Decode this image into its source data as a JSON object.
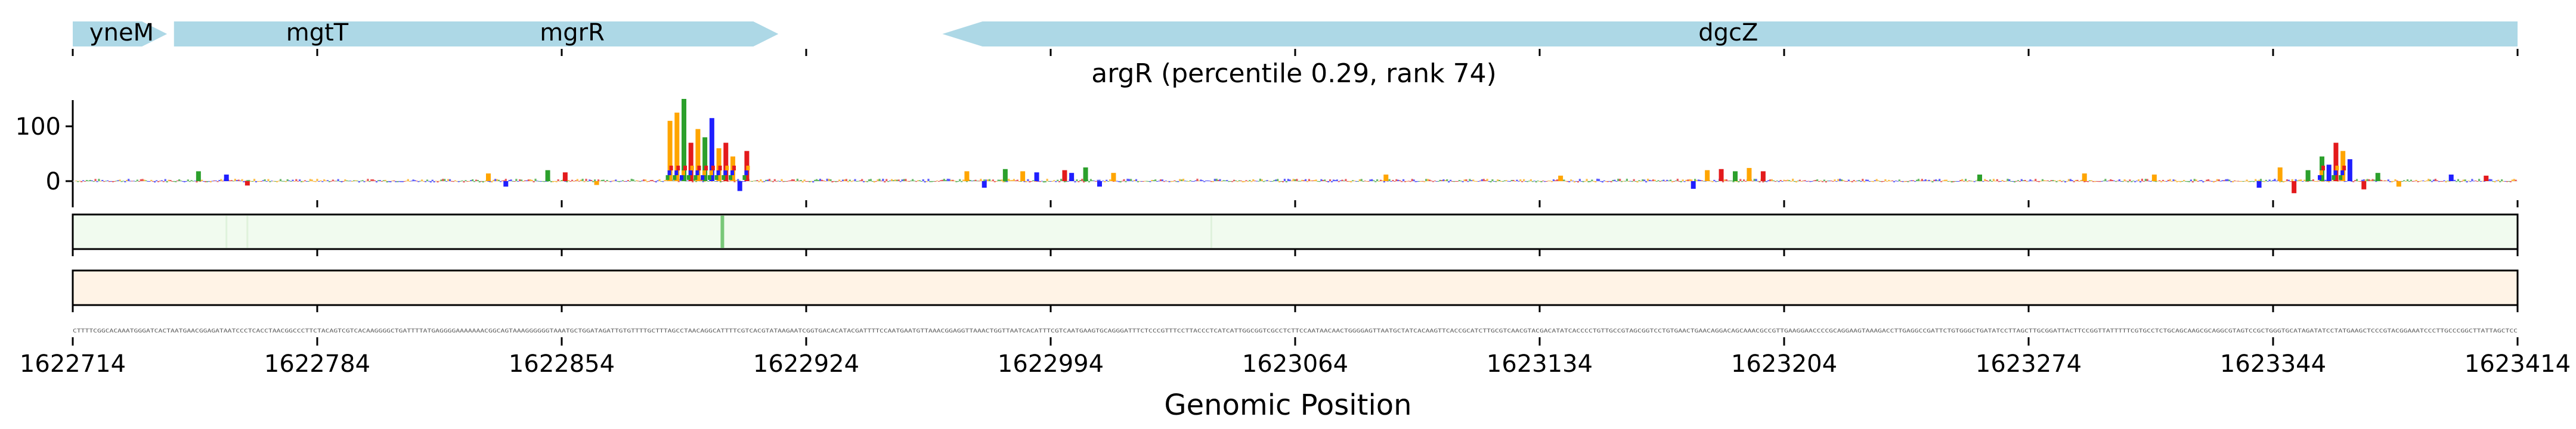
{
  "colors": {
    "gene_arrow": "#add8e6",
    "base_A": "#2ca02c",
    "base_C": "#1f1fff",
    "base_G": "#ffa500",
    "base_T": "#e31a1c",
    "track1_fill": "#f1fbef",
    "track1_highlight": "#78c878",
    "track2_fill": "#fff3e6",
    "axis": "#000000"
  },
  "chart_data": {
    "type": "sequence-logo-track",
    "title": "argR (percentile 0.29, rank 74)",
    "xlabel": "Genomic Position",
    "ylabel": "",
    "x_range": [
      1622714,
      1623414
    ],
    "x_ticks": [
      "1622714",
      "1622784",
      "1622854",
      "1622924",
      "1622994",
      "1623064",
      "1623134",
      "1623204",
      "1623274",
      "1623344",
      "1623414"
    ],
    "y_ticks": [
      "0",
      "100"
    ],
    "ylim": [
      -30,
      160
    ],
    "genes": [
      {
        "name": "yneM",
        "start": 1622714,
        "end": 1622741,
        "strand": "+"
      },
      {
        "name": "mgtT",
        "start": 1622743,
        "end": 1622916,
        "strand": "+"
      },
      {
        "name": "mgrR",
        "start": 1622743,
        "end": 1622916,
        "strand": "+"
      },
      {
        "name": "dgcZ",
        "start": 1622963,
        "end": 1623414,
        "strand": "-"
      }
    ],
    "gene_labels": [
      {
        "name": "yneM",
        "pos": 1622728
      },
      {
        "name": "mgtT",
        "pos": 1622784
      },
      {
        "name": "mgrR",
        "pos": 1622857
      },
      {
        "name": "dgcZ",
        "pos": 1623188
      }
    ],
    "logo_peaks": [
      {
        "pos": 1622750,
        "height": 18,
        "base": "A"
      },
      {
        "pos": 1622758,
        "height": 12,
        "base": "C"
      },
      {
        "pos": 1622764,
        "height": -8,
        "base": "T"
      },
      {
        "pos": 1622833,
        "height": 14,
        "base": "G"
      },
      {
        "pos": 1622838,
        "height": -10,
        "base": "C"
      },
      {
        "pos": 1622850,
        "height": 20,
        "base": "A"
      },
      {
        "pos": 1622855,
        "height": 16,
        "base": "T"
      },
      {
        "pos": 1622864,
        "height": -7,
        "base": "G"
      },
      {
        "pos": 1622885,
        "height": 110,
        "base": "G"
      },
      {
        "pos": 1622887,
        "height": 125,
        "base": "G"
      },
      {
        "pos": 1622889,
        "height": 150,
        "base": "A"
      },
      {
        "pos": 1622891,
        "height": 70,
        "base": "T"
      },
      {
        "pos": 1622893,
        "height": 95,
        "base": "G"
      },
      {
        "pos": 1622895,
        "height": 80,
        "base": "A"
      },
      {
        "pos": 1622897,
        "height": 115,
        "base": "C"
      },
      {
        "pos": 1622899,
        "height": 60,
        "base": "G"
      },
      {
        "pos": 1622901,
        "height": 70,
        "base": "T"
      },
      {
        "pos": 1622903,
        "height": 45,
        "base": "G"
      },
      {
        "pos": 1622905,
        "height": -18,
        "base": "C"
      },
      {
        "pos": 1622907,
        "height": 55,
        "base": "T"
      },
      {
        "pos": 1622970,
        "height": 18,
        "base": "G"
      },
      {
        "pos": 1622975,
        "height": -12,
        "base": "C"
      },
      {
        "pos": 1622981,
        "height": 22,
        "base": "A"
      },
      {
        "pos": 1622986,
        "height": 18,
        "base": "G"
      },
      {
        "pos": 1622990,
        "height": 16,
        "base": "C"
      },
      {
        "pos": 1622998,
        "height": 20,
        "base": "T"
      },
      {
        "pos": 1623000,
        "height": 15,
        "base": "C"
      },
      {
        "pos": 1623004,
        "height": 25,
        "base": "A"
      },
      {
        "pos": 1623008,
        "height": -10,
        "base": "C"
      },
      {
        "pos": 1623012,
        "height": 15,
        "base": "G"
      },
      {
        "pos": 1623090,
        "height": 12,
        "base": "G"
      },
      {
        "pos": 1623140,
        "height": 10,
        "base": "G"
      },
      {
        "pos": 1623178,
        "height": -14,
        "base": "C"
      },
      {
        "pos": 1623182,
        "height": 20,
        "base": "G"
      },
      {
        "pos": 1623186,
        "height": 22,
        "base": "T"
      },
      {
        "pos": 1623190,
        "height": 18,
        "base": "A"
      },
      {
        "pos": 1623194,
        "height": 24,
        "base": "G"
      },
      {
        "pos": 1623198,
        "height": 18,
        "base": "T"
      },
      {
        "pos": 1623260,
        "height": 12,
        "base": "A"
      },
      {
        "pos": 1623290,
        "height": 14,
        "base": "G"
      },
      {
        "pos": 1623310,
        "height": 12,
        "base": "G"
      },
      {
        "pos": 1623340,
        "height": -12,
        "base": "C"
      },
      {
        "pos": 1623346,
        "height": 25,
        "base": "G"
      },
      {
        "pos": 1623350,
        "height": -22,
        "base": "T"
      },
      {
        "pos": 1623354,
        "height": 20,
        "base": "A"
      },
      {
        "pos": 1623358,
        "height": 45,
        "base": "A"
      },
      {
        "pos": 1623360,
        "height": 30,
        "base": "C"
      },
      {
        "pos": 1623362,
        "height": 70,
        "base": "T"
      },
      {
        "pos": 1623364,
        "height": 55,
        "base": "G"
      },
      {
        "pos": 1623366,
        "height": 40,
        "base": "C"
      },
      {
        "pos": 1623370,
        "height": -15,
        "base": "T"
      },
      {
        "pos": 1623374,
        "height": 15,
        "base": "A"
      },
      {
        "pos": 1623380,
        "height": -10,
        "base": "G"
      },
      {
        "pos": 1623395,
        "height": 12,
        "base": "C"
      },
      {
        "pos": 1623405,
        "height": 10,
        "base": "T"
      }
    ],
    "track1_highlight_pos": 1622900,
    "sequence_text": "CTTTTCGGCACAAATGGGATCACTAATGAACGGAGATAATCCCTCACCTAACGGCCCTTCTACAGTCGTCACAAGGGGCTGATTTTATGAGGGGAAAAAAACGGCAGTAAAGGGGGGTAAATGCTGGATAGATTGTGTTTTGCTTTAGCCTAACAGGCATTTTCGTCACGTATAAGAATCGGTGACACATACGATTTTCCAATGAATGTTAAACGGAGGTTAAACTGGTTAATCACATTTCGTCAATGAAGTGCAGGGATTTCTCCCGTTTCCTTACCCTCATCATTGGCGGTCGCCTCTTCCAATAACAACTGGGGAGTTAATGCTATCACAAGTTCACCGCATCTTGCGTCAACGTACGACATATCACCCCTGTTGCCGTAGCGGTCCTGTGAACTGAACAGGACAGCAAACGCCGTTGAAGGAACCCCGCAGGAAGTAAAGACCTTGAGGCCGATTCTGTGGGCTGATATCCTTAGCTTGCGGATTACTTCCGGTTATTTTTCGTGCCTCTGCAGCAAGCGCAGGCGTAGTCCGCTGGGTGCATAGATATCCTATGAAGCTCCCGTACGGAAATCCCTTGCCCGGCTTATTAGCTCC"
  }
}
